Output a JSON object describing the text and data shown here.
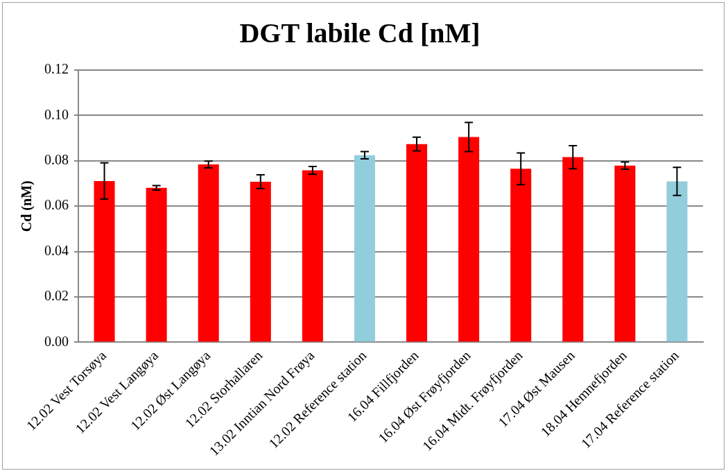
{
  "chart_data": {
    "type": "bar",
    "title": "DGT labile Cd [nM]",
    "ylabel": "Cd (nM)",
    "categories": [
      "12.02 Vest Torsøya",
      "12.02 Vest Langøya",
      "12.02 Øst Langøya",
      "12.02 Storhallaren",
      "13.02 Inntian Nord Frøya",
      "12.02 Reference station",
      "16.04 Fillfjorden",
      "16.04 Øst Frøyfjorden",
      "16.04 Midt. Frøyfjorden",
      "17.04 Øst Mausen",
      "18.04 Hemnefjorden",
      "17.04 Reference station"
    ],
    "values": [
      0.0711,
      0.0681,
      0.0784,
      0.0708,
      0.0758,
      0.0825,
      0.0874,
      0.0905,
      0.0765,
      0.0816,
      0.0779,
      0.0709
    ],
    "errors": [
      0.008,
      0.001,
      0.0015,
      0.003,
      0.0017,
      0.0016,
      0.003,
      0.0064,
      0.007,
      0.0051,
      0.0016,
      0.0062
    ],
    "colors": [
      "#ff0000",
      "#ff0000",
      "#ff0000",
      "#ff0000",
      "#ff0000",
      "#92cddc",
      "#ff0000",
      "#ff0000",
      "#ff0000",
      "#ff0000",
      "#ff0000",
      "#92cddc"
    ],
    "ylim": [
      0,
      0.12
    ],
    "yticks": [
      {
        "value": 0,
        "label": "0.00"
      },
      {
        "value": 0.02,
        "label": "0.02"
      },
      {
        "value": 0.04,
        "label": "0.04"
      },
      {
        "value": 0.06,
        "label": "0.06"
      },
      {
        "value": 0.08,
        "label": "0.08"
      },
      {
        "value": 0.1,
        "label": "0.10"
      },
      {
        "value": 0.12,
        "label": "0.12"
      }
    ],
    "grid": "y",
    "legend": false
  }
}
